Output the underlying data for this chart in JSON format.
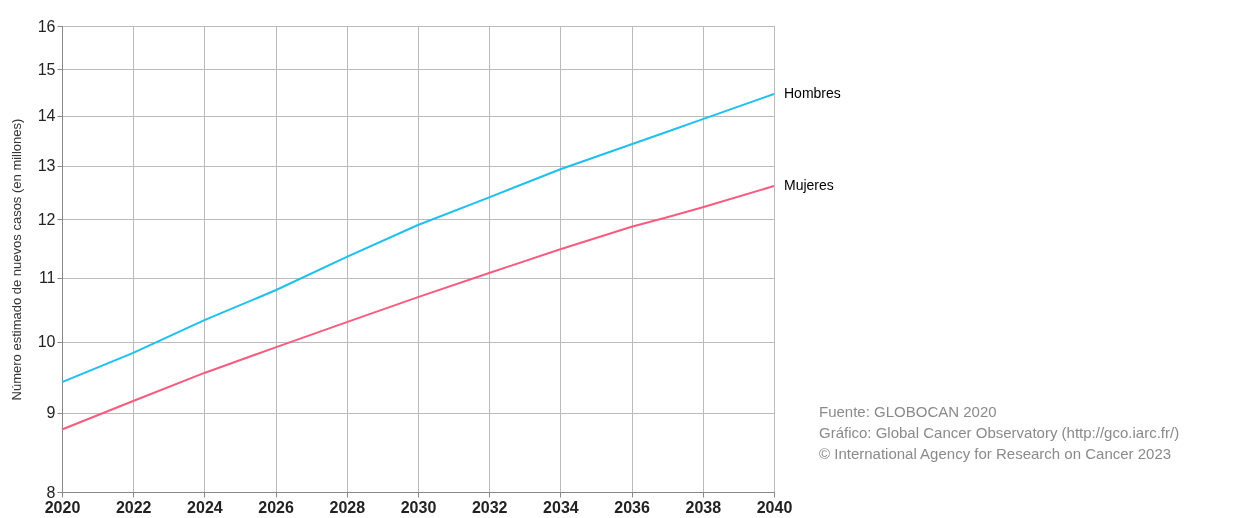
{
  "chart_data": {
    "type": "line",
    "ylabel": "Número estimado de nuevos casos (en millones)",
    "x": [
      2020,
      2022,
      2024,
      2026,
      2028,
      2030,
      2032,
      2034,
      2036,
      2037,
      2038,
      2040
    ],
    "series": [
      {
        "name": "Hombres",
        "color": "#1fbfef",
        "values": [
          9.42,
          9.84,
          10.33,
          10.8,
          11.35,
          11.9,
          12.4,
          12.93,
          13.42,
          13.67,
          13.93,
          14.46
        ]
      },
      {
        "name": "Mujeres",
        "color": "#f75c7e",
        "values": [
          8.78,
          9.16,
          9.55,
          9.92,
          10.3,
          10.69,
          11.08,
          11.48,
          11.87,
          12.04,
          12.22,
          12.61
        ]
      }
    ],
    "xlim": [
      2020,
      2040
    ],
    "xticks": [
      2020,
      2022,
      2024,
      2026,
      2028,
      2030,
      2032,
      2034,
      2036,
      2038,
      2040
    ],
    "ylim": [
      8,
      16
    ],
    "yticks": [
      8,
      9,
      10,
      11,
      12,
      13,
      14,
      15,
      16
    ],
    "log": "y",
    "grid": true,
    "legend": false,
    "marker": "none",
    "line_style": "solid",
    "annotations": [
      "Fuente: GLOBOCAN 2020",
      "Gráfico: Global Cancer Observatory (http://gco.iarc.fr/)",
      "© International Agency for Research on Cancer 2023"
    ]
  }
}
